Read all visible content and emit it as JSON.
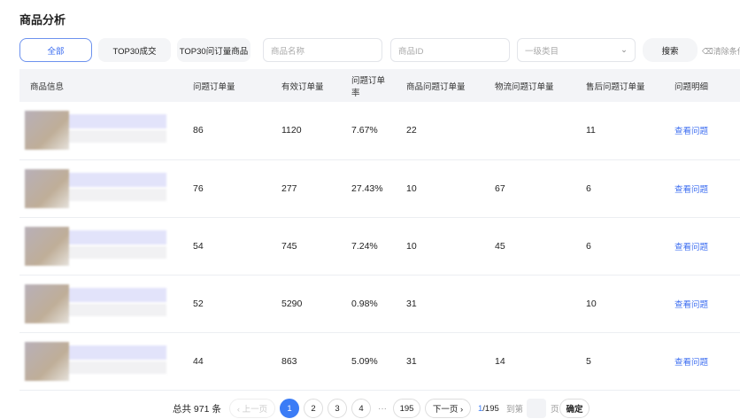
{
  "title": "商品分析",
  "filters": {
    "tabs": [
      "全部",
      "TOP30成交",
      "TOP30问订量商品"
    ],
    "name_placeholder": "商品名称",
    "id_placeholder": "商品ID",
    "category_placeholder": "一级类目",
    "search": "搜索",
    "clear": "⌫清除条件"
  },
  "table": {
    "headers": [
      "商品信息",
      "问题订单量",
      "有效订单量",
      "问题订单率",
      "商品问题订单量",
      "物流问题订单量",
      "售后问题订单量",
      "问题明细"
    ],
    "rows": [
      {
        "issue": "86",
        "valid": "1120",
        "rate": "7.67%",
        "product": "22",
        "logistics": "",
        "after": "11",
        "link": "查看问题"
      },
      {
        "issue": "76",
        "valid": "277",
        "rate": "27.43%",
        "product": "10",
        "logistics": "67",
        "after": "6",
        "link": "查看问题"
      },
      {
        "issue": "54",
        "valid": "745",
        "rate": "7.24%",
        "product": "10",
        "logistics": "45",
        "after": "6",
        "link": "查看问题"
      },
      {
        "issue": "52",
        "valid": "5290",
        "rate": "0.98%",
        "product": "31",
        "logistics": "",
        "after": "10",
        "link": "查看问题"
      },
      {
        "issue": "44",
        "valid": "863",
        "rate": "5.09%",
        "product": "31",
        "logistics": "14",
        "after": "5",
        "link": "查看问题"
      }
    ]
  },
  "pagination": {
    "total": "总共 971 条",
    "prev": "‹ 上一页",
    "pages": [
      "1",
      "2",
      "3",
      "4"
    ],
    "ellipsis": "···",
    "last": "195",
    "next": "下一页 ›",
    "current": "1",
    "of": "/195",
    "goto": "到第",
    "page_unit": "页",
    "confirm": "确定"
  },
  "colors": {
    "accent": "#3b7cf6"
  }
}
